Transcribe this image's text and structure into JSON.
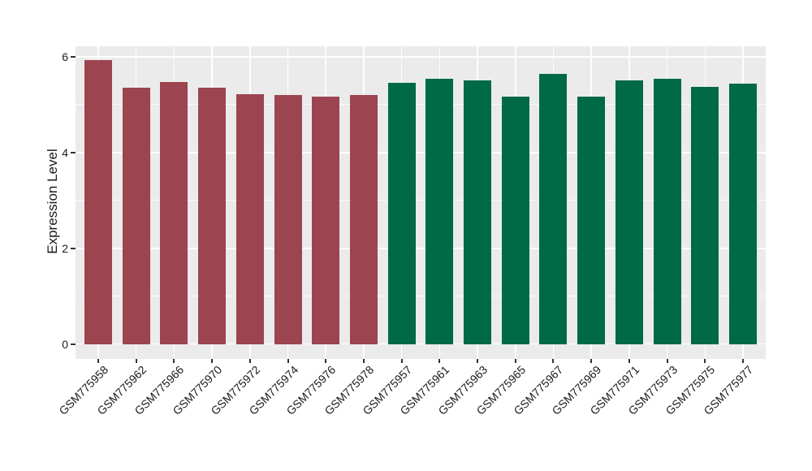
{
  "chart_data": {
    "type": "bar",
    "title": "",
    "xlabel": "",
    "ylabel": "Expression Level",
    "legend_position": "none",
    "grid": true,
    "panel_background": "#EBEBEB",
    "grid_color": "#FFFFFF",
    "axis_text_color": "#1a1a1a",
    "tick_mark_color": "#333333",
    "y_ticks": [
      0,
      2,
      4,
      6
    ],
    "y_minor_gridlines": [
      1,
      3,
      5
    ],
    "ylim": [
      -0.31,
      6.22
    ],
    "categories": [
      "GSM775958",
      "GSM775962",
      "GSM775966",
      "GSM775970",
      "GSM775972",
      "GSM775974",
      "GSM775976",
      "GSM775978",
      "GSM775957",
      "GSM775961",
      "GSM775963",
      "GSM775965",
      "GSM775967",
      "GSM775969",
      "GSM775971",
      "GSM775973",
      "GSM775975",
      "GSM775977"
    ],
    "values": [
      5.94,
      5.35,
      5.47,
      5.35,
      5.22,
      5.2,
      5.16,
      5.21,
      5.46,
      5.54,
      5.51,
      5.17,
      5.64,
      5.17,
      5.5,
      5.55,
      5.37,
      5.44
    ],
    "groups": [
      "a",
      "a",
      "a",
      "a",
      "a",
      "a",
      "a",
      "a",
      "b",
      "b",
      "b",
      "b",
      "b",
      "b",
      "b",
      "b",
      "b",
      "b"
    ],
    "group_colors": {
      "a": "#9C4450",
      "b": "#006946"
    }
  }
}
